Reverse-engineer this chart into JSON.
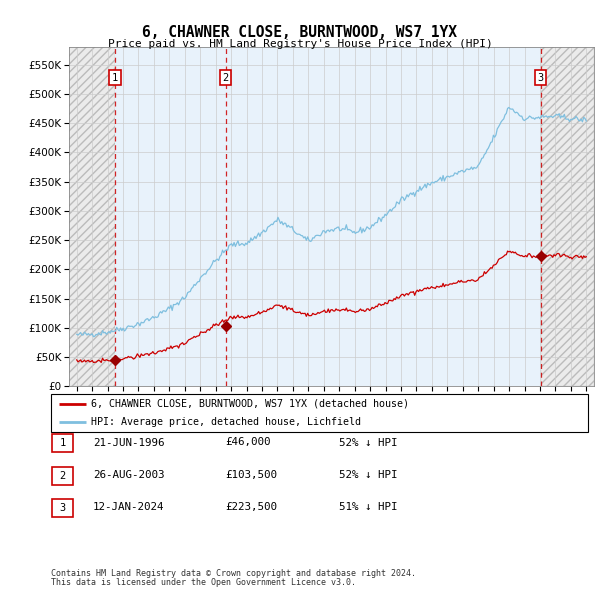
{
  "title": "6, CHAWNER CLOSE, BURNTWOOD, WS7 1YX",
  "subtitle": "Price paid vs. HM Land Registry's House Price Index (HPI)",
  "sales": [
    {
      "date": "1996-06-21",
      "price": 46000,
      "label": "1"
    },
    {
      "date": "2003-08-26",
      "price": 103500,
      "label": "2"
    },
    {
      "date": "2024-01-12",
      "price": 223500,
      "label": "3"
    }
  ],
  "sale_dates_decimal": [
    1996.472,
    2003.647,
    2024.036
  ],
  "ylim": [
    0,
    580000
  ],
  "yticks": [
    0,
    50000,
    100000,
    150000,
    200000,
    250000,
    300000,
    350000,
    400000,
    450000,
    500000,
    550000
  ],
  "ytick_labels": [
    "£0",
    "£50K",
    "£100K",
    "£150K",
    "£200K",
    "£250K",
    "£300K",
    "£350K",
    "£400K",
    "£450K",
    "£500K",
    "£550K"
  ],
  "xlim_start": 1993.5,
  "xlim_end": 2027.5,
  "xticks": [
    1994,
    1995,
    1996,
    1997,
    1998,
    1999,
    2000,
    2001,
    2002,
    2003,
    2004,
    2005,
    2006,
    2007,
    2008,
    2009,
    2010,
    2011,
    2012,
    2013,
    2014,
    2015,
    2016,
    2017,
    2018,
    2019,
    2020,
    2021,
    2022,
    2023,
    2024,
    2025,
    2026,
    2027
  ],
  "hpi_color": "#7fbfdf",
  "sale_line_color": "#cc0000",
  "sale_point_color": "#990000",
  "vline_color": "#cc0000",
  "hatch_fc": "#ebebeb",
  "blue_bg": "#e8f2fb",
  "grid_color": "#cccccc",
  "legend_entries": [
    "6, CHAWNER CLOSE, BURNTWOOD, WS7 1YX (detached house)",
    "HPI: Average price, detached house, Lichfield"
  ],
  "table_rows": [
    {
      "num": "1",
      "date": "21-JUN-1996",
      "price": "£46,000",
      "pct": "52% ↓ HPI"
    },
    {
      "num": "2",
      "date": "26-AUG-2003",
      "price": "£103,500",
      "pct": "52% ↓ HPI"
    },
    {
      "num": "3",
      "date": "12-JAN-2024",
      "price": "£223,500",
      "pct": "51% ↓ HPI"
    }
  ],
  "footnote1": "Contains HM Land Registry data © Crown copyright and database right 2024.",
  "footnote2": "This data is licensed under the Open Government Licence v3.0.",
  "hpi_base_prices": {
    "1994": 88000,
    "1995": 89500,
    "1996": 93000,
    "1997": 99000,
    "1998": 107000,
    "1999": 118000,
    "2000": 133000,
    "2001": 152000,
    "2002": 185000,
    "2003": 215000,
    "2004": 242000,
    "2005": 245000,
    "2006": 263000,
    "2007": 285000,
    "2008": 268000,
    "2009": 248000,
    "2010": 265000,
    "2011": 270000,
    "2012": 263000,
    "2013": 272000,
    "2014": 293000,
    "2015": 318000,
    "2016": 335000,
    "2017": 348000,
    "2018": 358000,
    "2019": 368000,
    "2020": 375000,
    "2021": 425000,
    "2022": 478000,
    "2023": 458000,
    "2024": 460000,
    "2025": 462000,
    "2026": 458000,
    "2027": 455000
  }
}
